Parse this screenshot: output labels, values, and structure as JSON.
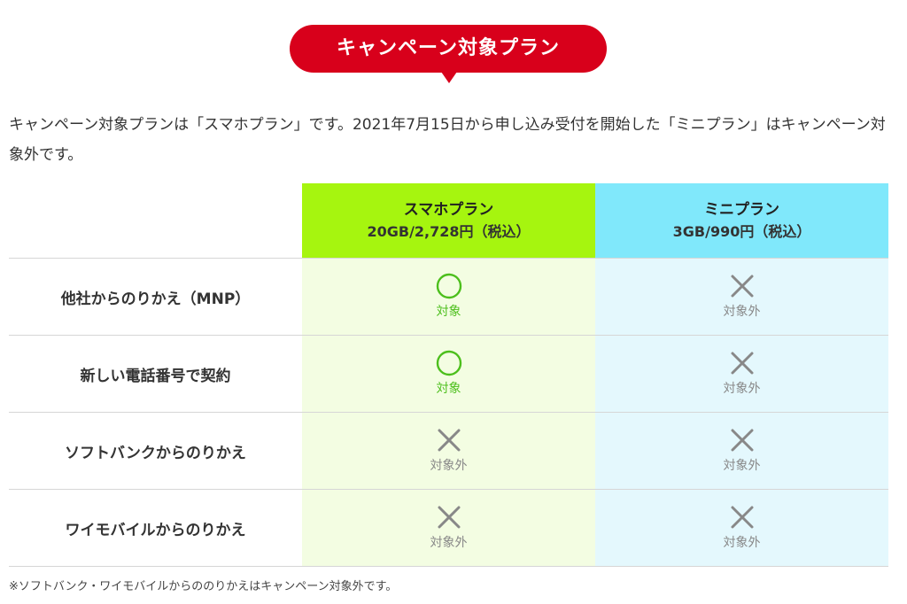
{
  "banner": {
    "title": "キャンペーン対象プラン"
  },
  "intro": {
    "text": "キャンペーン対象プランは「スマホプラン」です。2021年7月15日から申し込み受付を開始した「ミニプラン」はキャンペーン対象外です。"
  },
  "table": {
    "plans": [
      {
        "name": "スマホプラン",
        "price": "20GB/2,728円（税込）",
        "header_color": "#a6f50f",
        "cell_color": "#f3fde2"
      },
      {
        "name": "ミニプラン",
        "price": "3GB/990円（税込）",
        "header_color": "#80e8fb",
        "cell_color": "#e4f8fd"
      }
    ],
    "rows": [
      {
        "label": "他社からのりかえ（MNP）",
        "cells": [
          {
            "icon": "circle-icon",
            "status": "対象",
            "eligible": true
          },
          {
            "icon": "cross-icon",
            "status": "対象外",
            "eligible": false
          }
        ]
      },
      {
        "label": "新しい電話番号で契約",
        "cells": [
          {
            "icon": "circle-icon",
            "status": "対象",
            "eligible": true
          },
          {
            "icon": "cross-icon",
            "status": "対象外",
            "eligible": false
          }
        ]
      },
      {
        "label": "ソフトバンクからのりかえ",
        "cells": [
          {
            "icon": "cross-icon",
            "status": "対象外",
            "eligible": false
          },
          {
            "icon": "cross-icon",
            "status": "対象外",
            "eligible": false
          }
        ]
      },
      {
        "label": "ワイモバイルからのりかえ",
        "cells": [
          {
            "icon": "cross-icon",
            "status": "対象外",
            "eligible": false
          },
          {
            "icon": "cross-icon",
            "status": "対象外",
            "eligible": false
          }
        ]
      }
    ]
  },
  "footnote": {
    "text": "※ソフトバンク・ワイモバイルからののりかえはキャンペーン対象外です。"
  },
  "colors": {
    "brand_red": "#d8001b",
    "ok_green": "#4cbf1c",
    "ng_gray": "#888888"
  }
}
